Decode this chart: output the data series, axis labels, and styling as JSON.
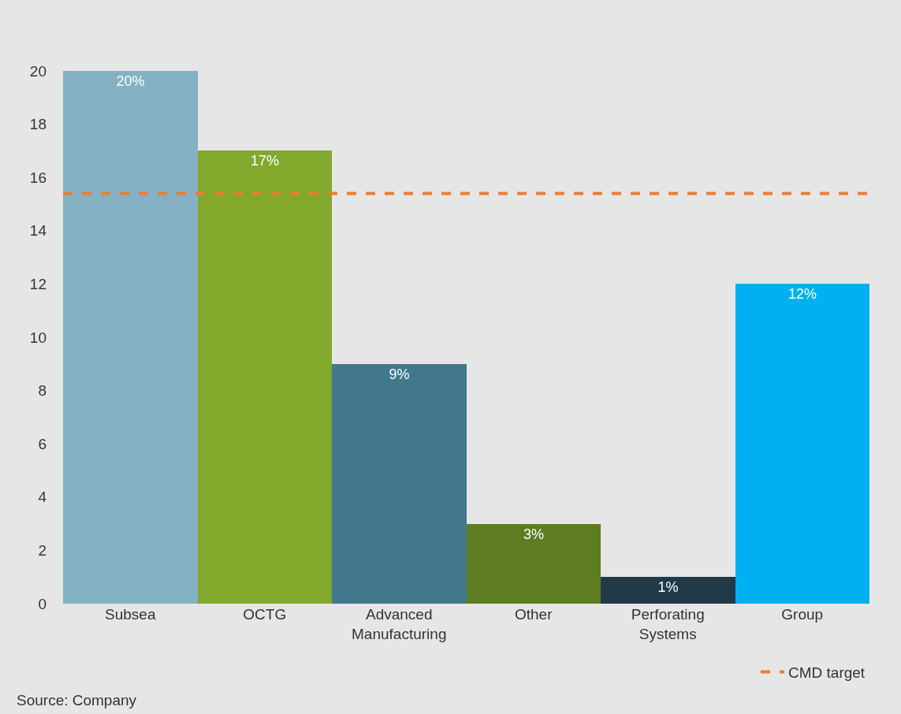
{
  "chart_data": {
    "type": "bar",
    "categories": [
      "Subsea",
      "OCTG",
      "Advanced\nManufacturing",
      "Other",
      "Perforating\nSystems",
      "Group"
    ],
    "values": [
      20,
      17,
      9,
      3,
      1,
      12
    ],
    "colors": [
      "#84b1c4",
      "#82a82c",
      "#41788e",
      "#5e7c21",
      "#213a48",
      "#00b0f0"
    ],
    "value_labels": [
      "20%",
      "17%",
      "9%",
      "3%",
      "1%",
      "12%"
    ],
    "ylim": [
      0,
      20
    ],
    "yticks": [
      0,
      2,
      4,
      6,
      8,
      10,
      12,
      14,
      16,
      18,
      20
    ],
    "ref_lines": [
      {
        "axis": "y",
        "value": 15.4,
        "label": "CMD target",
        "color": "#ed7d31",
        "line_style": "dashed"
      }
    ],
    "legend": "bottom right",
    "grid": false,
    "annotations": [
      "Source: Company"
    ]
  }
}
